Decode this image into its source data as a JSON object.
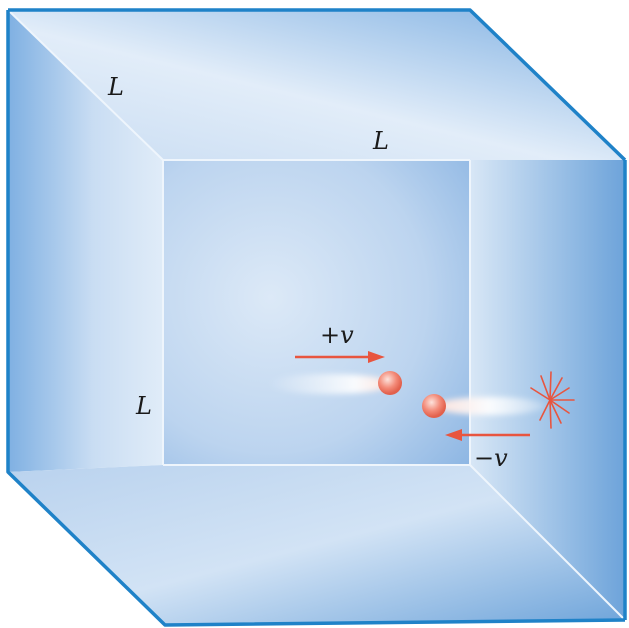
{
  "labels": {
    "edge_top_left": "L",
    "edge_top_front": "L",
    "edge_front_left": "L",
    "velocity_positive": "+v",
    "velocity_negative": "−v"
  },
  "colors": {
    "box_edge": "#1f82c8",
    "face_light": "#d6e6f6",
    "face_mid": "#a9c9ec",
    "face_dark": "#6fa4da",
    "arrow": "#e8553f",
    "particle": "#f07a6a"
  }
}
